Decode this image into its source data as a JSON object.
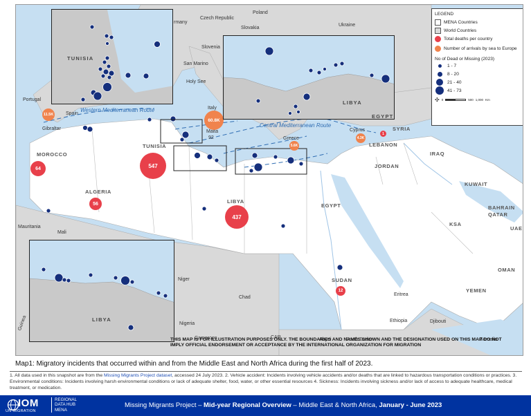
{
  "map": {
    "countries": {
      "germany": "rmany",
      "czech_republic": "Czech Republic",
      "poland": "Poland",
      "slovakia": "Slovakia",
      "ukraine": "Ukraine",
      "slovenia": "Slovenia",
      "san_marino": "San Marino",
      "italy_short": "Italy",
      "holy_see": "Holy See",
      "portugal": "Portugal",
      "spain": "Spain",
      "gibraltar": "Gibraltar",
      "malta": "Malta",
      "greece": "Greece",
      "cyprus": "Cyprus",
      "syria": "SYRIA",
      "lebanon": "LEBANON",
      "iraq": "IRAQ",
      "jordan": "JORDAN",
      "kuwait": "KUWAIT",
      "bahrain": "BAHRAIN",
      "qatar": "QATAR",
      "ksa": "KSA",
      "uae": "UAE",
      "oman": "OMAN",
      "yemen": "YEMEN",
      "morocco": "MOROCCO",
      "tunisia": "TUNISIA",
      "algeria": "ALGERIA",
      "libya": "LIBYA",
      "egypt": "EGYPT",
      "sudan": "SUDAN",
      "mauritania": "Mauritania",
      "mali": "Mali",
      "niger": "Niger",
      "chad": "Chad",
      "nigeria": "Nigeria",
      "cameroon": "Cameroon",
      "car": "CAR",
      "abyei": "Abyei",
      "south_sudan": "South Sudan",
      "eritrea": "Eritrea",
      "ethiopia": "Ethiopia",
      "djibouti": "Djibouti",
      "somalia": "Somalia",
      "guinea": "Guinea",
      "tunisia_inset": "TUNISIA",
      "libya_inset_top": "LIBYA",
      "egypt_inset_top": "EGYPT",
      "libya_inset_bottom": "LIBYA"
    },
    "routes": {
      "western": "Western Mediterranean Route",
      "central": "Central Mediterranean Route"
    },
    "deaths": {
      "morocco": "64",
      "tunisia": "547",
      "algeria": "56",
      "libya": "437",
      "lebanon": "1",
      "sudan": "12",
      "malta": "92"
    },
    "arrivals": {
      "spain": "11.5K",
      "italy": "60.8K",
      "greece": "5.6K",
      "cyprus": "4.3K"
    },
    "colors": {
      "sea": "#c6dff2",
      "mena_land": "#ffffff",
      "world_land": "#d9d9d9",
      "incident": "#152f7c",
      "death_badge": "#e8404a",
      "arrival_badge": "#f0834d",
      "route": "#2f6db3"
    },
    "disclaimer": "THIS MAP IS FOR ILLUSTRATION PURPOSES ONLY. THE BOUNDARIES AND NAMES SHOWN AND THE DESIGNATION USED ON THIS MAP DO NOT IMPLY OFFICIAL ENDORSEMENT OR ACCEPTANCE BY THE INTERNATIONAL ORGANIZATION FOR MIGRATION"
  },
  "legend": {
    "title": "LEGEND",
    "mena": "MENA Countries",
    "world": "World Countries",
    "deaths": "Total deaths per country",
    "arrivals": "Number of arrivals by sea to Europe",
    "size_title": "No of Dead or Missing (2023)",
    "sizes": [
      "1 - 7",
      "8 - 20",
      "21 - 40",
      "41 - 73"
    ],
    "scale_left": "0",
    "scale_mid": "500",
    "scale_right": "1,000",
    "scale_unit": "Km"
  },
  "caption": "Map1: Migratory incidents that occurred within and from the Middle East and North Africa during the first half of 2023.",
  "notes": {
    "n1": "1. All data used in this snapshot are from the ",
    "link": "Missing Migrants Project dataset",
    "n2": ", accessed 24 July 2023. 2. Vehicle accident: Incidents involving vehicle accidents and/or deaths that are linked to hazardous transportation conditions or practices. 3. Environmental conditions: Incidents involving harsh environmental conditions or lack of adequate shelter, food, water, or other essential resources 4. Sickness: Incidents involving sickness and/or lack of access to adequate healthcare, medical treatment, or medication."
  },
  "footer": {
    "logo": "IOM",
    "logo_sub": "UN MIGRATION",
    "hub_line1": "REGIONAL",
    "hub_line2": "DATA HUB",
    "hub_line3": "MENA",
    "title_a": "Missing Migrants Project – ",
    "title_b": "Mid-year Regional Overview",
    "title_c": " – Middle East & North Africa, ",
    "title_d": "January - June 2023"
  }
}
